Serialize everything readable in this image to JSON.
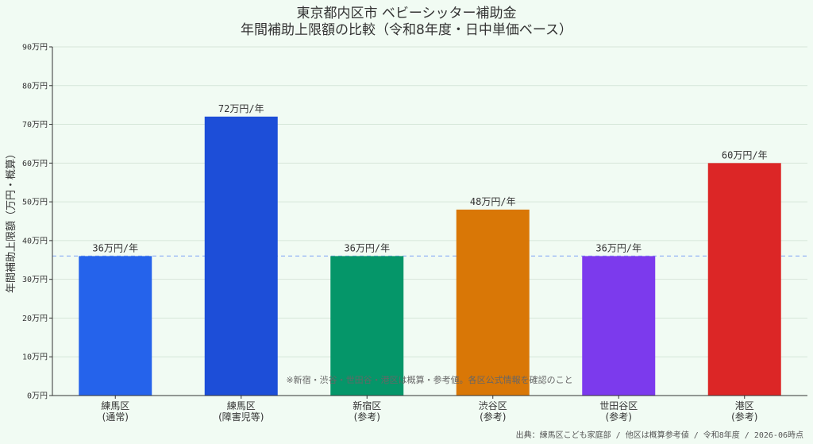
{
  "chart_data": {
    "type": "bar",
    "title_lines": [
      "東京都内区市 ベビーシッター補助金",
      "年間補助上限額の比較（令和8年度・日中単価ベース）"
    ],
    "ylabel": "年間補助上限額（万円・概算）",
    "ylim": [
      0,
      90
    ],
    "yticks": [
      0,
      10,
      20,
      30,
      40,
      50,
      60,
      70,
      80,
      90
    ],
    "ytick_labels": [
      "0万円",
      "10万円",
      "20万円",
      "30万円",
      "40万円",
      "50万円",
      "60万円",
      "70万円",
      "80万円",
      "90万円"
    ],
    "categories": [
      [
        "練馬区",
        "(通常)"
      ],
      [
        "練馬区",
        "(障害児等)"
      ],
      [
        "新宿区",
        "(参考)"
      ],
      [
        "渋谷区",
        "(参考)"
      ],
      [
        "世田谷区",
        "(参考)"
      ],
      [
        "港区",
        "(参考)"
      ]
    ],
    "values": [
      36,
      72,
      36,
      48,
      36,
      60
    ],
    "value_labels": [
      "36万円/年",
      "72万円/年",
      "36万円/年",
      "48万円/年",
      "36万円/年",
      "60万円/年"
    ],
    "colors": [
      "#2563eb",
      "#1d4ed8",
      "#059669",
      "#d97706",
      "#7c3aed",
      "#dc2626"
    ],
    "reference_line": {
      "value": 36,
      "color": "#93b4f5"
    },
    "grid": true,
    "note": "※新宿・渋谷・世田谷・港区は概算・参考値。各区公式情報を確認のこと",
    "source": "出典：練馬区こども家庭部 / 他区は概算参考値 / 令和8年度 / 2026-06時点"
  }
}
